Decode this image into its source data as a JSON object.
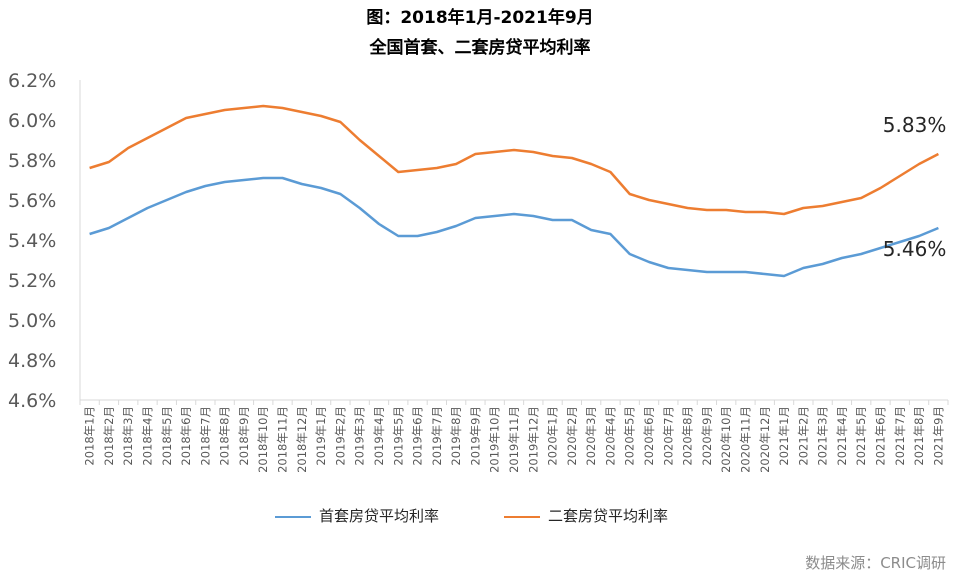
{
  "chart_data": {
    "type": "line",
    "title": "图：2018年1月-2021年9月",
    "subtitle": "全国首套、二套房贷平均利率",
    "categories": [
      "2018年1月",
      "2018年2月",
      "2018年3月",
      "2018年4月",
      "2018年5月",
      "2018年6月",
      "2018年7月",
      "2018年8月",
      "2018年9月",
      "2018年10月",
      "2018年11月",
      "2018年12月",
      "2019年1月",
      "2019年2月",
      "2019年3月",
      "2019年4月",
      "2019年5月",
      "2019年6月",
      "2019年7月",
      "2019年8月",
      "2019年9月",
      "2019年10月",
      "2019年11月",
      "2019年12月",
      "2020年1月",
      "2020年2月",
      "2020年3月",
      "2020年4月",
      "2020年5月",
      "2020年6月",
      "2020年7月",
      "2020年8月",
      "2020年9月",
      "2020年10月",
      "2020年11月",
      "2020年12月",
      "2021年1月",
      "2021年2月",
      "2021年3月",
      "2021年4月",
      "2021年5月",
      "2021年6月",
      "2021年7月",
      "2021年8月",
      "2021年9月"
    ],
    "series": [
      {
        "name": "首套房贷平均利率",
        "color": "#5b9bd5",
        "values": [
          5.43,
          5.46,
          5.51,
          5.56,
          5.6,
          5.64,
          5.67,
          5.69,
          5.7,
          5.71,
          5.71,
          5.68,
          5.66,
          5.63,
          5.56,
          5.48,
          5.42,
          5.42,
          5.44,
          5.47,
          5.51,
          5.52,
          5.53,
          5.52,
          5.5,
          5.5,
          5.45,
          5.43,
          5.33,
          5.29,
          5.26,
          5.25,
          5.24,
          5.24,
          5.24,
          5.23,
          5.22,
          5.26,
          5.28,
          5.31,
          5.33,
          5.36,
          5.39,
          5.42,
          5.46
        ]
      },
      {
        "name": "二套房贷平均利率",
        "color": "#ed7d31",
        "values": [
          5.76,
          5.79,
          5.86,
          5.91,
          5.96,
          6.01,
          6.03,
          6.05,
          6.06,
          6.07,
          6.06,
          6.04,
          6.02,
          5.99,
          5.9,
          5.82,
          5.74,
          5.75,
          5.76,
          5.78,
          5.83,
          5.84,
          5.85,
          5.84,
          5.82,
          5.81,
          5.78,
          5.74,
          5.63,
          5.6,
          5.58,
          5.56,
          5.55,
          5.55,
          5.54,
          5.54,
          5.53,
          5.56,
          5.57,
          5.59,
          5.61,
          5.66,
          5.72,
          5.78,
          5.83
        ]
      }
    ],
    "yticks": [
      "4.6%",
      "4.8%",
      "5.0%",
      "5.2%",
      "5.4%",
      "5.6%",
      "5.8%",
      "6.0%",
      "6.2%"
    ],
    "ylim": [
      4.6,
      6.2
    ],
    "annotations": [
      {
        "text": "5.83%",
        "series": 1
      },
      {
        "text": "5.46%",
        "series": 0
      }
    ],
    "legend_position": "bottom",
    "source": "数据来源：CRIC调研"
  }
}
